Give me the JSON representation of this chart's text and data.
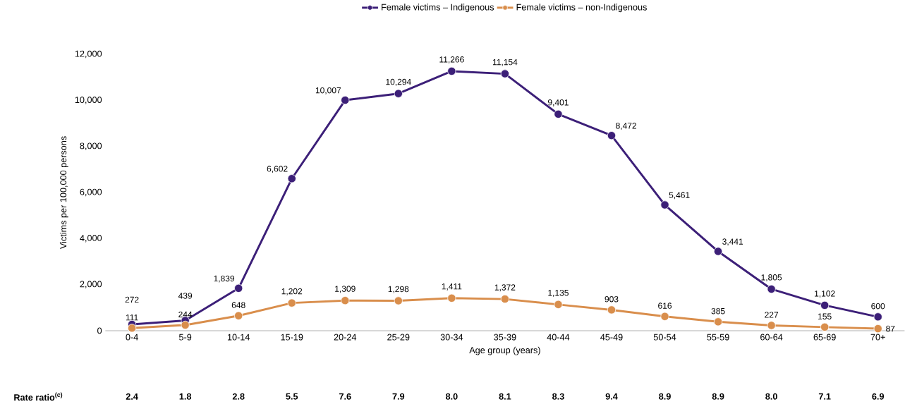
{
  "chart_data": {
    "type": "line",
    "xlabel": "Age group (years)",
    "ylabel": "Victims per 100,000 persons",
    "categories": [
      "0-4",
      "5-9",
      "10-14",
      "15-19",
      "20-24",
      "25-29",
      "30-34",
      "35-39",
      "40-44",
      "45-49",
      "50-54",
      "55-59",
      "60-64",
      "65-69",
      "70+"
    ],
    "series": [
      {
        "name": "Female victims – Indigenous",
        "color": "#3c1f78",
        "values": [
          272,
          439,
          1839,
          6602,
          10007,
          10294,
          11266,
          11154,
          9401,
          8472,
          5461,
          3441,
          1805,
          1102,
          600
        ],
        "value_labels": [
          "272",
          "439",
          "1,839",
          "6,602",
          "10,007",
          "10,294",
          "11,266",
          "11,154",
          "9,401",
          "8,472",
          "5,461",
          "3,441",
          "1,805",
          "1,102",
          "600"
        ]
      },
      {
        "name": "Female victims – non-Indigenous",
        "color": "#d98e4c",
        "values": [
          111,
          244,
          648,
          1202,
          1309,
          1298,
          1411,
          1372,
          1135,
          903,
          616,
          385,
          227,
          155,
          87
        ],
        "value_labels": [
          "111",
          "244",
          "648",
          "1,202",
          "1,309",
          "1,298",
          "1,411",
          "1,372",
          "1,135",
          "903",
          "616",
          "385",
          "227",
          "155",
          "87"
        ]
      }
    ],
    "ylim": [
      0,
      12000
    ],
    "yticks": [
      {
        "value": 0,
        "label": "0"
      },
      {
        "value": 2000,
        "label": "2,000"
      },
      {
        "value": 4000,
        "label": "4,000"
      },
      {
        "value": 6000,
        "label": "6,000"
      },
      {
        "value": 8000,
        "label": "8,000"
      },
      {
        "value": 10000,
        "label": "10,000"
      },
      {
        "value": 12000,
        "label": "12,000"
      }
    ],
    "marker": "circle",
    "line_style": "solid",
    "legend": "top",
    "grid": false,
    "annotations": [
      "Rate ratio$^{(c)}$",
      "2.4",
      "1.8",
      "2.8",
      "5.5",
      "7.6",
      "7.9",
      "8.0",
      "8.1",
      "8.3",
      "9.4",
      "8.9",
      "8.9",
      "8.0",
      "7.1",
      "6.9"
    ]
  }
}
